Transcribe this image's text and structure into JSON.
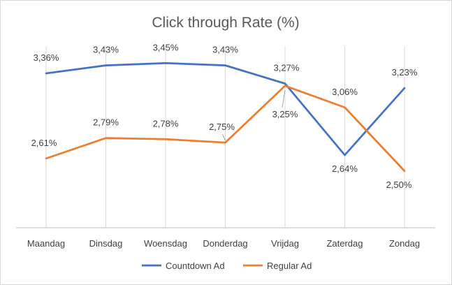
{
  "chart_data": {
    "type": "line",
    "title": "Click through Rate (%)",
    "xlabel": "",
    "ylabel": "",
    "categories": [
      "Maandag",
      "Dinsdag",
      "Woensdag",
      "Donderdag",
      "Vrijdag",
      "Zaterdag",
      "Zondag"
    ],
    "series": [
      {
        "name": "Countdown Ad",
        "color": "#4472c4",
        "values": [
          3.36,
          3.43,
          3.45,
          3.43,
          3.27,
          2.64,
          3.23
        ],
        "labels": [
          "3,36%",
          "3,43%",
          "3,45%",
          "3,43%",
          "3,27%",
          "2,64%",
          "3,23%"
        ]
      },
      {
        "name": "Regular Ad",
        "color": "#ed7d31",
        "values": [
          2.61,
          2.79,
          2.78,
          2.75,
          3.25,
          3.06,
          2.5
        ],
        "labels": [
          "2,61%",
          "2,79%",
          "2,78%",
          "2,75%",
          "3,25%",
          "3,06%",
          "2,50%"
        ]
      }
    ],
    "ylim": [
      2.0,
      3.6
    ],
    "grid": "vertical",
    "legend_position": "bottom"
  }
}
